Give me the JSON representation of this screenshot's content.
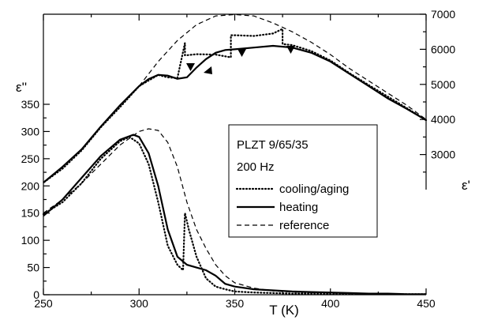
{
  "chart_data": {
    "type": "line",
    "x_axis": {
      "label": "T (K)",
      "range": [
        250,
        450
      ],
      "ticks": [
        250,
        300,
        350,
        400,
        450
      ]
    },
    "y_left_axis": {
      "label": "ε''",
      "range": [
        0,
        350
      ],
      "ticks": [
        0,
        50,
        100,
        150,
        200,
        250,
        300,
        350
      ]
    },
    "y_right_axis": {
      "label": "ε'",
      "range": [
        2000,
        7000
      ],
      "ticks": [
        3000,
        4000,
        5000,
        6000,
        7000
      ]
    },
    "legend": {
      "placement": "center-right",
      "title_lines": [
        "PLZT 9/65/35",
        "200 Hz"
      ],
      "entries": [
        {
          "label": "cooling/aging",
          "style": "dotted"
        },
        {
          "label": "heating",
          "style": "solid"
        },
        {
          "label": "reference",
          "style": "dashed"
        }
      ]
    },
    "series": [
      {
        "name": "reference",
        "axis": "right",
        "style": "dashed",
        "x": [
          300,
          310,
          320,
          330,
          340,
          350,
          360,
          370,
          380,
          390,
          400,
          410,
          420,
          430,
          440,
          450
        ],
        "y": [
          4950,
          5650,
          6250,
          6700,
          6950,
          6990,
          6950,
          6750,
          6500,
          6200,
          5850,
          5450,
          5100,
          4750,
          4400,
          4000
        ]
      },
      {
        "name": "heating",
        "axis": "right",
        "style": "solid",
        "x": [
          250,
          260,
          270,
          280,
          290,
          300,
          305,
          310,
          315,
          320,
          325,
          330,
          335,
          340,
          345,
          350,
          360,
          370,
          380,
          390,
          400,
          410,
          420,
          430,
          440,
          450
        ],
        "y": [
          2200,
          2650,
          3150,
          3800,
          4400,
          4950,
          5150,
          5270,
          5250,
          5160,
          5200,
          5480,
          5720,
          5900,
          5980,
          6000,
          6050,
          6100,
          6050,
          5900,
          5650,
          5300,
          4950,
          4600,
          4300,
          3980
        ]
      },
      {
        "name": "cooling/aging",
        "axis": "right",
        "style": "dotted",
        "x": [
          450,
          440,
          430,
          420,
          410,
          400,
          390,
          380,
          375,
          375,
          370,
          360,
          350,
          348,
          348,
          340,
          330,
          325,
          324,
          324,
          320,
          315,
          310,
          300,
          290,
          280,
          270,
          260,
          250
        ],
        "y": [
          3980,
          4320,
          4650,
          4980,
          5320,
          5680,
          5950,
          6120,
          6150,
          6580,
          6450,
          6380,
          6400,
          6400,
          5770,
          5850,
          5860,
          5830,
          5830,
          6180,
          5180,
          5200,
          5270,
          4950,
          4350,
          3780,
          3120,
          2600,
          2200
        ]
      },
      {
        "name": "reference",
        "axis": "left",
        "style": "dashed",
        "x": [
          250,
          260,
          270,
          280,
          290,
          300,
          305,
          310,
          315,
          320,
          325,
          330,
          335,
          340,
          345,
          350,
          360,
          370,
          380,
          390,
          400,
          410,
          420,
          430,
          440,
          450
        ],
        "y": [
          150,
          175,
          205,
          240,
          275,
          300,
          305,
          302,
          280,
          235,
          170,
          120,
          85,
          55,
          35,
          22,
          12,
          7,
          5,
          4,
          3,
          2,
          1,
          1,
          1,
          1
        ]
      },
      {
        "name": "heating",
        "axis": "left",
        "style": "solid",
        "x": [
          250,
          260,
          270,
          280,
          290,
          297,
          300,
          305,
          310,
          315,
          320,
          325,
          330,
          335,
          340,
          345,
          350,
          360,
          370,
          380,
          390,
          400,
          410,
          420,
          430,
          440,
          450
        ],
        "y": [
          145,
          175,
          215,
          255,
          285,
          294,
          290,
          260,
          200,
          120,
          70,
          55,
          50,
          45,
          35,
          20,
          15,
          10,
          8,
          6,
          5,
          4,
          3,
          2,
          2,
          1,
          1
        ]
      },
      {
        "name": "cooling/aging",
        "axis": "left",
        "style": "dotted",
        "x": [
          250,
          260,
          270,
          280,
          290,
          295,
          300,
          305,
          310,
          315,
          320,
          323,
          324,
          326,
          330,
          335,
          340,
          345,
          350,
          360,
          370,
          380,
          390,
          400,
          410,
          420,
          430,
          440,
          450
        ],
        "y": [
          148,
          170,
          205,
          250,
          282,
          290,
          278,
          240,
          170,
          90,
          55,
          45,
          150,
          120,
          70,
          30,
          15,
          10,
          6,
          4,
          3,
          2,
          2,
          1,
          1,
          1,
          1,
          1,
          1
        ]
      }
    ]
  }
}
